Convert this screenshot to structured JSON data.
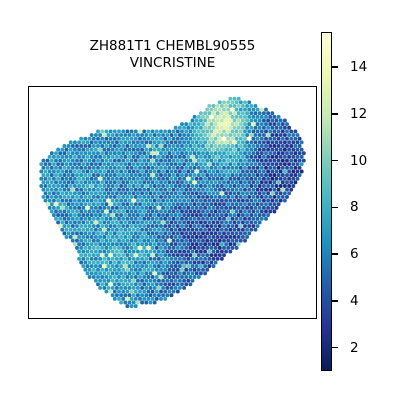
{
  "chart_data": {
    "type": "heatmap",
    "title": "ZH881T1 CHEMBL90555\nVINCRISTINE",
    "colormap": "YlGnBu_r",
    "colorbar": {
      "min": 1.0,
      "max": 15.5,
      "ticks": [
        2,
        4,
        6,
        8,
        10,
        12,
        14
      ]
    },
    "regions": [
      {
        "name": "upper-left lobe",
        "level": 6.5
      },
      {
        "name": "central body",
        "level": 6.0
      },
      {
        "name": "upper-right hotspot",
        "level": 12.5
      },
      {
        "name": "right edge",
        "level": 3.0
      },
      {
        "name": "lower tip",
        "level": 4.5
      },
      {
        "name": "lower-left patch",
        "level": 8.5
      }
    ]
  }
}
